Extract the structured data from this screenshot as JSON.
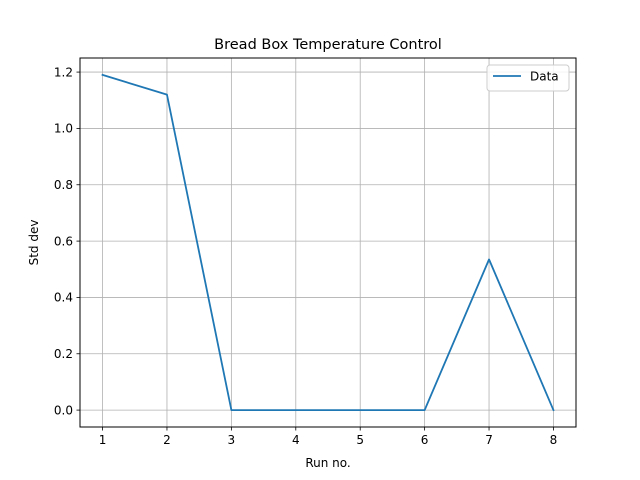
{
  "chart_data": {
    "type": "line",
    "title": "Bread Box Temperature Control",
    "xlabel": "Run no.",
    "ylabel": "Std dev",
    "x": [
      1,
      2,
      3,
      4,
      5,
      6,
      7,
      8
    ],
    "series": [
      {
        "name": "Data",
        "color": "#1f77b4",
        "values": [
          1.19,
          1.12,
          0.0,
          0.0,
          0.0,
          0.0,
          0.535,
          0.0
        ]
      }
    ],
    "xlim": [
      0.65,
      8.35
    ],
    "ylim": [
      -0.06,
      1.25
    ],
    "xticks": [
      "1",
      "2",
      "3",
      "4",
      "5",
      "6",
      "7",
      "8"
    ],
    "yticks": [
      "0.0",
      "0.2",
      "0.4",
      "0.6",
      "0.8",
      "1.0",
      "1.2"
    ],
    "grid": true,
    "legend_position": "top-right"
  }
}
